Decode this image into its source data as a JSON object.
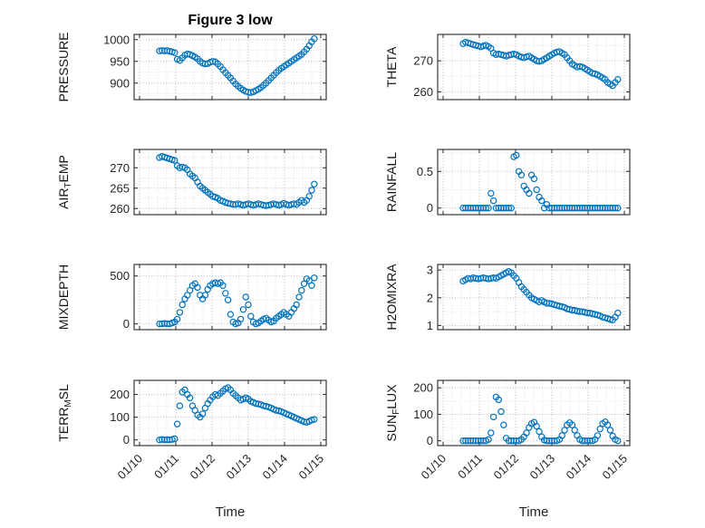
{
  "figure": {
    "title": "Figure 3 low",
    "xlabel": "Time"
  },
  "colors": {
    "marker": "#0072BD",
    "axis": "#262626",
    "text": "#262626",
    "grid_major": "#b8b8b8",
    "grid_minor": "#dedede"
  },
  "chart_data": {
    "type": "scatter",
    "layout": "4x2-subplots",
    "x_axis_label": "Time",
    "xlim": [
      -0.15,
      5.15
    ],
    "x_ticks": [
      0,
      1,
      2,
      3,
      4,
      5
    ],
    "x_tick_labels": [
      "01/10",
      "01/11",
      "01/12",
      "01/13",
      "01/14",
      "01/15"
    ],
    "x_minor_step": 0.25,
    "x": [
      0.55,
      0.62,
      0.69,
      0.76,
      0.83,
      0.9,
      0.97,
      1.04,
      1.11,
      1.18,
      1.25,
      1.32,
      1.39,
      1.46,
      1.53,
      1.6,
      1.67,
      1.74,
      1.81,
      1.88,
      1.95,
      2.02,
      2.09,
      2.16,
      2.23,
      2.3,
      2.37,
      2.44,
      2.51,
      2.58,
      2.65,
      2.72,
      2.79,
      2.86,
      2.93,
      3,
      3.07,
      3.14,
      3.21,
      3.28,
      3.35,
      3.42,
      3.49,
      3.56,
      3.63,
      3.7,
      3.77,
      3.84,
      3.91,
      3.98,
      4.05,
      4.12,
      4.19,
      4.26,
      4.33,
      4.4,
      4.47,
      4.54,
      4.61,
      4.68,
      4.75,
      4.82
    ],
    "subplots": [
      {
        "name": "PRESSURE",
        "ylabel": {
          "pre": "PRESSURE",
          "sub": "",
          "post": ""
        },
        "yticks": [
          900,
          950,
          1000
        ],
        "ylim": [
          862,
          1012
        ],
        "values": [
          974,
          975,
          974,
          975,
          973,
          972,
          970,
          955,
          952,
          958,
          964,
          967,
          966,
          963,
          960,
          956,
          950,
          946,
          944,
          945,
          948,
          950,
          949,
          944,
          938,
          931,
          924,
          918,
          912,
          905,
          898,
          893,
          888,
          884,
          881,
          879,
          878,
          880,
          883,
          886,
          890,
          895,
          900,
          906,
          912,
          918,
          924,
          929,
          934,
          938,
          942,
          946,
          950,
          954,
          958,
          962,
          966,
          972,
          978,
          986,
          995,
          1002
        ]
      },
      {
        "name": "THETA",
        "ylabel": {
          "pre": "THETA",
          "sub": "",
          "post": ""
        },
        "yticks": [
          260,
          270
        ],
        "ylim": [
          257.5,
          278.5
        ],
        "values": [
          275.5,
          276,
          275.8,
          275.5,
          275.2,
          275,
          274.8,
          274.5,
          274.8,
          275,
          274.6,
          274,
          272.5,
          272,
          272.2,
          272,
          271.8,
          271.5,
          271.8,
          272,
          272.2,
          272,
          271.5,
          271.2,
          271,
          271.3,
          271.5,
          271,
          270.5,
          270,
          269.8,
          270,
          270.5,
          271,
          271.5,
          272,
          272.5,
          272.8,
          273,
          272.5,
          272,
          271,
          270,
          269,
          268.5,
          268,
          268.2,
          268,
          267.5,
          267,
          266.5,
          266,
          265.8,
          265.5,
          265,
          264.5,
          264,
          263,
          262.5,
          262,
          263,
          264
        ]
      },
      {
        "name": "AIR_TEMP",
        "ylabel": {
          "pre": "AIR",
          "sub": "T",
          "post": "EMP"
        },
        "yticks": [
          260,
          265,
          270
        ],
        "ylim": [
          258.5,
          274.5
        ],
        "values": [
          272.5,
          272.8,
          272.6,
          272.4,
          272.2,
          272,
          271.8,
          270.5,
          270,
          270.2,
          270,
          269.5,
          268.5,
          268,
          267.5,
          266.5,
          265.5,
          265,
          264.5,
          264,
          263.5,
          263,
          262.8,
          262.5,
          262,
          261.8,
          261.5,
          261.3,
          261.2,
          261,
          261,
          261.2,
          261,
          260.8,
          261,
          261.2,
          261,
          260.8,
          261,
          261.2,
          261,
          260.8,
          260.7,
          260.8,
          261,
          261.2,
          261,
          260.8,
          261,
          261.3,
          261,
          260.8,
          261,
          261.2,
          261,
          261.5,
          262,
          261.5,
          262,
          263,
          264.5,
          266
        ]
      },
      {
        "name": "RAINFALL",
        "ylabel": {
          "pre": "RAINFALL",
          "sub": "",
          "post": ""
        },
        "yticks": [
          0,
          0.5
        ],
        "ylim": [
          -0.09,
          0.8
        ],
        "values": [
          0,
          0,
          0,
          0,
          0,
          0,
          0,
          0,
          0,
          0,
          0,
          0.2,
          0.1,
          0,
          0,
          0,
          0,
          0,
          0,
          0,
          0.7,
          0.72,
          0.5,
          0.45,
          0.3,
          0.25,
          0.2,
          0.45,
          0.4,
          0.25,
          0.15,
          0.1,
          0,
          0.05,
          0,
          0,
          0,
          0,
          0,
          0,
          0,
          0,
          0,
          0,
          0,
          0,
          0,
          0,
          0,
          0,
          0,
          0,
          0,
          0,
          0,
          0,
          0,
          0,
          0,
          0,
          0,
          0
        ]
      },
      {
        "name": "MIXDEPTH",
        "ylabel": {
          "pre": "MIXDEPTH",
          "sub": "",
          "post": ""
        },
        "yticks": [
          0,
          500
        ],
        "ylim": [
          -60,
          620
        ],
        "values": [
          0,
          0,
          5,
          0,
          0,
          10,
          20,
          50,
          120,
          200,
          260,
          300,
          350,
          400,
          420,
          380,
          300,
          260,
          300,
          360,
          400,
          420,
          430,
          420,
          430,
          400,
          320,
          250,
          100,
          20,
          0,
          10,
          50,
          150,
          280,
          200,
          80,
          20,
          0,
          10,
          30,
          50,
          60,
          40,
          20,
          30,
          60,
          80,
          100,
          120,
          100,
          80,
          120,
          160,
          200,
          280,
          350,
          420,
          470,
          450,
          400,
          480
        ]
      },
      {
        "name": "H2OMIXRA",
        "ylabel": {
          "pre": "H2OMIXRA",
          "sub": "",
          "post": ""
        },
        "yticks": [
          1,
          2,
          3
        ],
        "ylim": [
          0.85,
          3.2
        ],
        "values": [
          2.6,
          2.65,
          2.7,
          2.68,
          2.72,
          2.7,
          2.68,
          2.7,
          2.72,
          2.7,
          2.68,
          2.7,
          2.72,
          2.7,
          2.75,
          2.8,
          2.85,
          2.9,
          2.95,
          2.9,
          2.8,
          2.7,
          2.55,
          2.4,
          2.3,
          2.2,
          2.1,
          2.0,
          1.95,
          1.9,
          1.85,
          1.9,
          1.85,
          1.8,
          1.8,
          1.78,
          1.75,
          1.72,
          1.7,
          1.68,
          1.65,
          1.6,
          1.58,
          1.55,
          1.55,
          1.52,
          1.5,
          1.5,
          1.48,
          1.45,
          1.45,
          1.42,
          1.4,
          1.38,
          1.35,
          1.3,
          1.28,
          1.25,
          1.22,
          1.2,
          1.3,
          1.45
        ]
      },
      {
        "name": "TERR_MSL",
        "ylabel": {
          "pre": "TERR",
          "sub": "M",
          "post": "SL"
        },
        "yticks": [
          0,
          100,
          200
        ],
        "ylim": [
          -25,
          262
        ],
        "values": [
          0,
          2,
          0,
          1,
          0,
          2,
          5,
          70,
          150,
          210,
          220,
          200,
          185,
          150,
          130,
          110,
          100,
          115,
          140,
          160,
          175,
          190,
          200,
          195,
          205,
          215,
          225,
          230,
          220,
          205,
          195,
          185,
          175,
          180,
          185,
          180,
          170,
          165,
          160,
          158,
          155,
          150,
          148,
          145,
          140,
          135,
          130,
          128,
          125,
          120,
          115,
          110,
          105,
          100,
          95,
          90,
          85,
          80,
          78,
          82,
          88,
          90
        ]
      },
      {
        "name": "SUN_FLUX",
        "ylabel": {
          "pre": "SUN",
          "sub": "F",
          "post": "LUX"
        },
        "yticks": [
          0,
          100,
          200
        ],
        "ylim": [
          -18,
          228
        ],
        "values": [
          0,
          0,
          0,
          0,
          0,
          0,
          0,
          0,
          0,
          0,
          5,
          30,
          90,
          165,
          155,
          110,
          60,
          10,
          0,
          0,
          0,
          0,
          0,
          5,
          15,
          30,
          50,
          65,
          70,
          55,
          35,
          15,
          3,
          0,
          0,
          0,
          0,
          0,
          5,
          20,
          40,
          60,
          68,
          60,
          40,
          20,
          5,
          0,
          0,
          0,
          0,
          0,
          5,
          20,
          45,
          65,
          72,
          60,
          40,
          18,
          5,
          0
        ]
      }
    ]
  }
}
